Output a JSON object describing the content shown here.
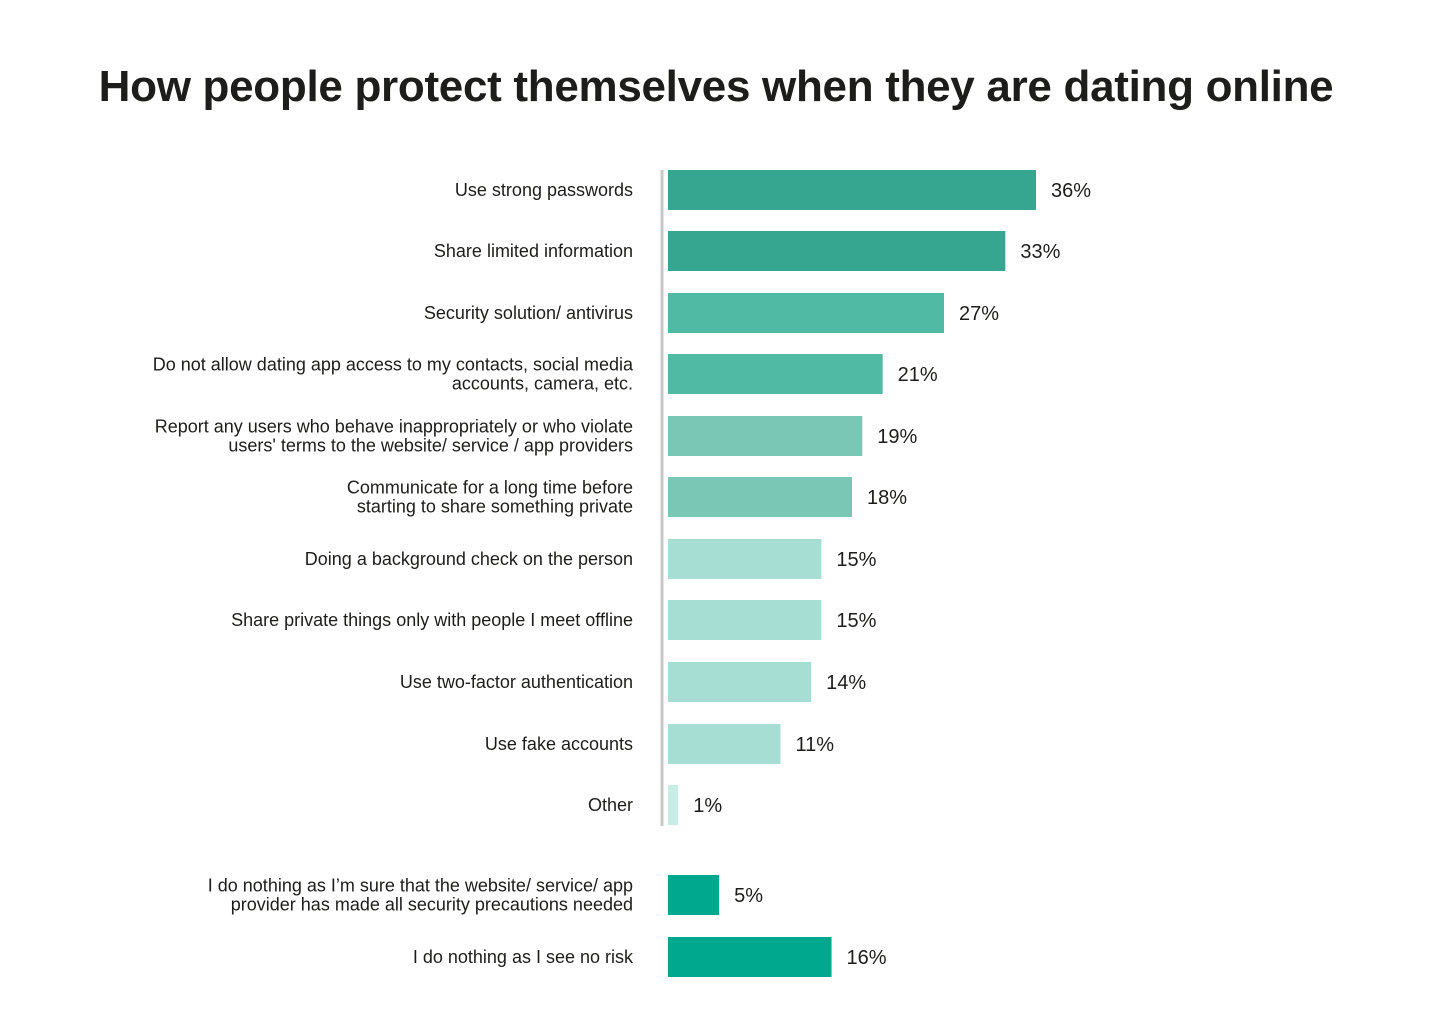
{
  "chart_data": {
    "type": "bar",
    "orientation": "horizontal",
    "title": "How people protect themselves when they are dating online",
    "categories": [
      "Use strong passwords",
      "Share limited information",
      "Security solution/ antivirus",
      "Do not allow dating app access to my contacts, social media accounts, camera, etc.",
      "Report any users who behave inappropriately or who violate users' terms to the website/ service / app providers",
      "Communicate for a long time before starting to share something private",
      "Doing a background check on the person",
      "Share private things only with people I meet offline",
      "Use two-factor authentication",
      "Use fake accounts",
      "Other",
      "I do nothing as I’m sure that the website/ service/ app provider has made all security precautions needed",
      "I do nothing as I see no risk"
    ],
    "label_lines": [
      [
        "Use strong passwords"
      ],
      [
        "Share limited information"
      ],
      [
        "Security solution/ antivirus"
      ],
      [
        "Do not allow dating app access to my contacts, social media",
        "accounts, camera, etc."
      ],
      [
        "Report any users who behave inappropriately or who violate",
        "users' terms to the website/ service / app providers"
      ],
      [
        "Communicate for a long time before",
        "starting to share something private"
      ],
      [
        "Doing a background check on the person"
      ],
      [
        "Share private things only with people I meet offline"
      ],
      [
        "Use two-factor authentication"
      ],
      [
        "Use fake accounts"
      ],
      [
        "Other"
      ],
      [
        "I do nothing as I’m sure that the website/ service/ app",
        "provider has made all security precautions needed"
      ],
      [
        "I do nothing as I see no risk"
      ]
    ],
    "values": [
      36,
      33,
      27,
      21,
      19,
      18,
      15,
      15,
      14,
      11,
      1,
      5,
      16
    ],
    "value_labels": [
      "36%",
      "33%",
      "27%",
      "21%",
      "19%",
      "18%",
      "15%",
      "15%",
      "14%",
      "11%",
      "1%",
      "5%",
      "16%"
    ],
    "colors": [
      "#37a690",
      "#37a690",
      "#50baa4",
      "#50baa4",
      "#7ac7b5",
      "#7ac7b5",
      "#a6ded4",
      "#a6ded4",
      "#a6ded4",
      "#a6ded4",
      "#c9ece6",
      "#00a88e",
      "#00a88e"
    ],
    "xlim": [
      0,
      36
    ],
    "unit": "%",
    "grid": false,
    "legend": "none"
  }
}
